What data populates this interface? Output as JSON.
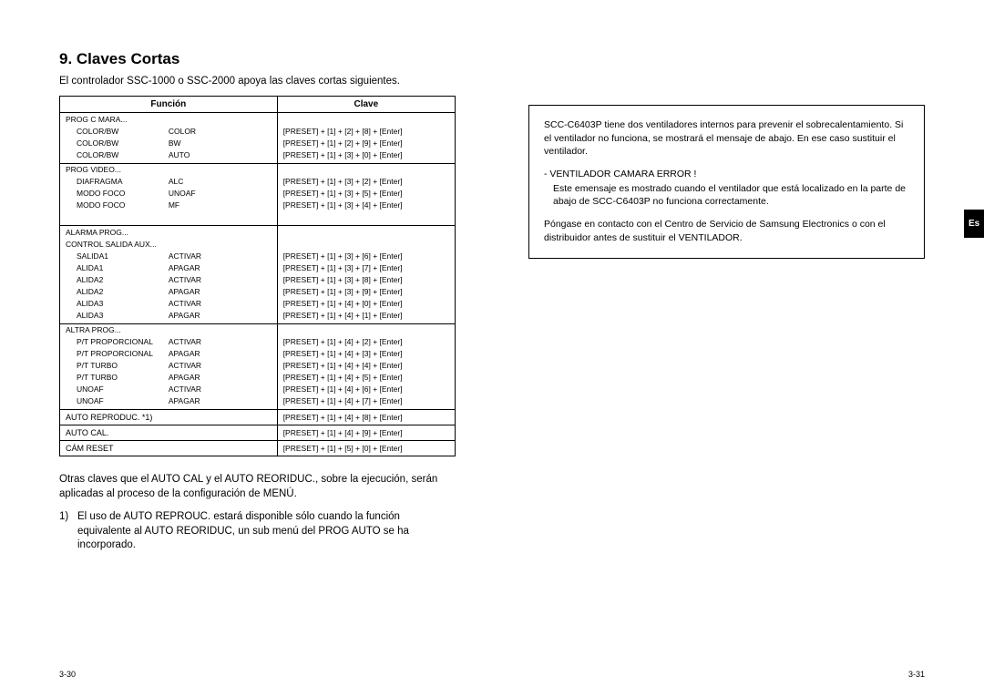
{
  "left": {
    "title": "9. Claves Cortas",
    "intro": "El controlador SSC-1000 o SSC-2000 apoya las claves cortas siguientes.",
    "th_func": "Función",
    "th_key": "Clave",
    "groups": [
      {
        "header": "PROG C MARA...",
        "rows": [
          {
            "f": "COLOR/BW",
            "v": "COLOR",
            "k": "[PRESET] + [1] + [2] + [8] + [Enter]"
          },
          {
            "f": "COLOR/BW",
            "v": "BW",
            "k": "[PRESET] + [1] + [2] + [9] + [Enter]"
          },
          {
            "f": "COLOR/BW",
            "v": "AUTO",
            "k": "[PRESET] + [1] + [3] + [0] + [Enter]"
          }
        ]
      },
      {
        "header": "PROG VIDEO...",
        "rows": [
          {
            "f": "DIAFRAGMA",
            "v": "ALC",
            "k": "[PRESET] + [1] + [3] + [2] + [Enter]"
          },
          {
            "f": "MODO FOCO",
            "v": "UNOAF",
            "k": "[PRESET] + [1] + [3] + [5] + [Enter]"
          },
          {
            "f": "MODO FOCO",
            "v": "MF",
            "k": "[PRESET] + [1] + [3] + [4] + [Enter]"
          }
        ],
        "trailing_blank": true
      },
      {
        "header": "ALARMA PROG...",
        "header2": "CONTROL SALIDA AUX...",
        "rows": [
          {
            "f": "SALIDA1",
            "v": "ACTIVAR",
            "k": "[PRESET] + [1] + [3] + [6] + [Enter]"
          },
          {
            "f": "ALIDA1",
            "v": "APAGAR",
            "k": "[PRESET] + [1] + [3] + [7] + [Enter]"
          },
          {
            "f": "ALIDA2",
            "v": "ACTIVAR",
            "k": "[PRESET] + [1] + [3] + [8] + [Enter]"
          },
          {
            "f": "ALIDA2",
            "v": "APAGAR",
            "k": "[PRESET] + [1] + [3] + [9] + [Enter]"
          },
          {
            "f": "ALIDA3",
            "v": "ACTIVAR",
            "k": "[PRESET] + [1] + [4] + [0] + [Enter]"
          },
          {
            "f": "ALIDA3",
            "v": "APAGAR",
            "k": "[PRESET] + [1] + [4] + [1] + [Enter]"
          }
        ]
      },
      {
        "header": "ALTRA PROG...",
        "rows": [
          {
            "f": "P/T PROPORCIONAL",
            "v": "ACTIVAR",
            "k": "[PRESET] + [1] + [4] + [2] + [Enter]"
          },
          {
            "f": "P/T PROPORCIONAL",
            "v": "APAGAR",
            "k": "[PRESET] + [1] + [4] + [3] + [Enter]"
          },
          {
            "f": "P/T TURBO",
            "v": "ACTIVAR",
            "k": "[PRESET] + [1] + [4] + [4] + [Enter]"
          },
          {
            "f": "P/T TURBO",
            "v": "APAGAR",
            "k": "[PRESET] + [1] + [4] + [5] + [Enter]"
          },
          {
            "f": "UNOAF",
            "v": "ACTIVAR",
            "k": "[PRESET] + [1] + [4] + [6] + [Enter]"
          },
          {
            "f": "UNOAF",
            "v": "APAGAR",
            "k": "[PRESET] + [1] + [4] + [7] + [Enter]"
          }
        ]
      }
    ],
    "singles": [
      {
        "f": "AUTO REPRODUC. *1)",
        "k": "[PRESET] + [1] + [4] + [8] + [Enter]"
      },
      {
        "f": "AUTO CAL.",
        "k": "[PRESET] + [1] + [4] + [9] + [Enter]"
      },
      {
        "f": "CÁM RESET",
        "k": "[PRESET] + [1] + [5] + [0] + [Enter]"
      }
    ],
    "note1": "Otras claves que el AUTO CAL y el AUTO REORIDUC., sobre la ejecución, serán aplicadas al proceso de la configuración de MENÚ.",
    "note2_num": "1)",
    "note2": "El uso de AUTO REPROUC. estará disponible sólo cuando la función equivalente al AUTO REORIDUC, un sub menú del PROG AUTO se ha incorporado.",
    "page_num": "3-30"
  },
  "right": {
    "box": {
      "p1": "SCC-C6403P tiene dos ventiladores internos para prevenir el sobrecalentamiento. Si el ventilador no funciona, se mostrará el mensaje de abajo. En ese caso sustituir el ventilador.",
      "msg_title": "- VENTILADOR CAMARA ERROR !",
      "msg_body": "Este emensaje es mostrado cuando el ventilador que está localizado en la parte de abajo de SCC-C6403P no funciona correctamente.",
      "p2": "Póngase en contacto con el Centro de Servicio de Samsung Electronics o con el distribuidor antes de sustituir el VENTILADOR."
    },
    "lang_tab": "Es",
    "page_num": "3-31"
  }
}
